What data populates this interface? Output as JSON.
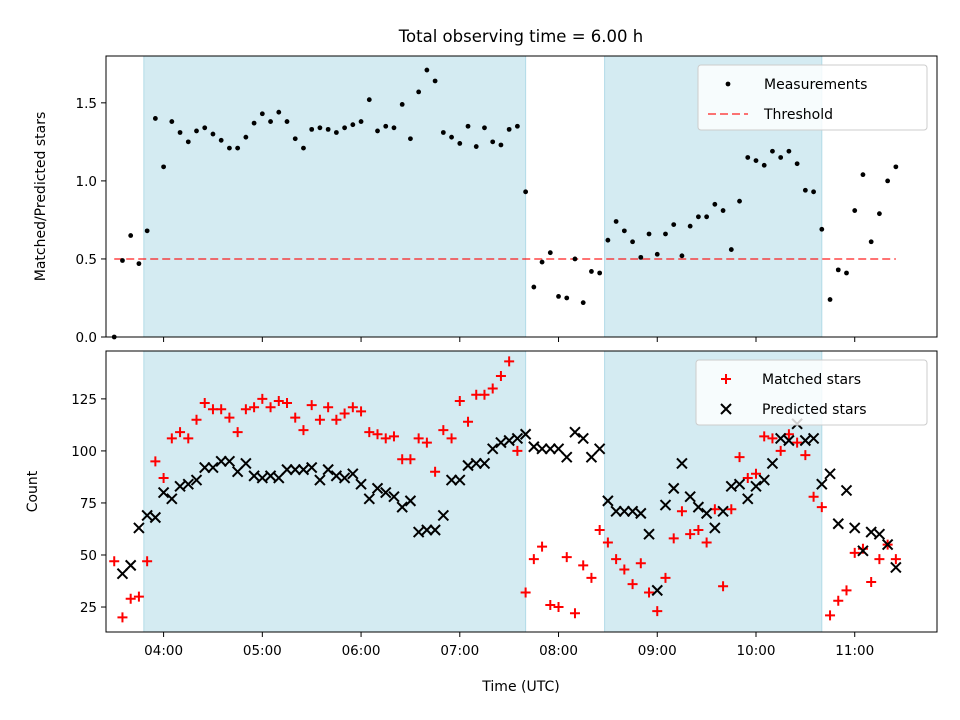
{
  "title": "Total observing time = 6.00 h",
  "colors": {
    "shade": "#add8e6",
    "measurement": "#000000",
    "threshold": "#ff0000",
    "matched": "#ff0000",
    "predicted": "#000000",
    "background": "#ffffff"
  },
  "chart_data": [
    {
      "type": "scatter",
      "ylabel": "Matched/Predicted stars",
      "ylim": [
        0,
        1.8
      ],
      "yticks": [
        0,
        0.5,
        1.0,
        1.5
      ],
      "yticklabels": [
        "0.0",
        "0.5",
        "1.0",
        "1.5"
      ],
      "xlim": [
        "03:25",
        "11:50"
      ],
      "legend": {
        "placement": "top-right",
        "entries": [
          "Measurements",
          "Threshold"
        ]
      },
      "shaded_intervals": [
        [
          "03:48",
          "07:40"
        ],
        [
          "08:28",
          "10:40"
        ]
      ],
      "threshold": {
        "name": "Threshold",
        "y": 0.5,
        "x_start": "03:30",
        "x_end": "11:25"
      },
      "series": [
        {
          "name": "Measurements",
          "marker": "dot",
          "x": [
            "03:30",
            "03:35",
            "03:40",
            "03:45",
            "03:50",
            "03:55",
            "04:00",
            "04:05",
            "04:10",
            "04:15",
            "04:20",
            "04:25",
            "04:30",
            "04:35",
            "04:40",
            "04:45",
            "04:50",
            "04:55",
            "05:00",
            "05:05",
            "05:10",
            "05:15",
            "05:20",
            "05:25",
            "05:30",
            "05:35",
            "05:40",
            "05:45",
            "05:50",
            "05:55",
            "06:00",
            "06:05",
            "06:10",
            "06:15",
            "06:20",
            "06:25",
            "06:30",
            "06:35",
            "06:40",
            "06:45",
            "06:50",
            "06:55",
            "07:00",
            "07:05",
            "07:10",
            "07:15",
            "07:20",
            "07:25",
            "07:30",
            "07:35",
            "07:40",
            "07:45",
            "07:50",
            "07:55",
            "08:00",
            "08:05",
            "08:10",
            "08:15",
            "08:20",
            "08:25",
            "08:30",
            "08:35",
            "08:40",
            "08:45",
            "08:50",
            "08:55",
            "09:00",
            "09:05",
            "09:10",
            "09:15",
            "09:20",
            "09:25",
            "09:30",
            "09:35",
            "09:40",
            "09:45",
            "09:50",
            "09:55",
            "10:00",
            "10:05",
            "10:10",
            "10:15",
            "10:20",
            "10:25",
            "10:30",
            "10:35",
            "10:40",
            "10:45",
            "10:50",
            "10:55",
            "11:00",
            "11:05",
            "11:10",
            "11:15",
            "11:20",
            "11:25"
          ],
          "y": [
            0.0,
            0.49,
            0.65,
            0.47,
            0.68,
            1.4,
            1.09,
            1.38,
            1.31,
            1.25,
            1.32,
            1.34,
            1.3,
            1.26,
            1.21,
            1.21,
            1.28,
            1.37,
            1.43,
            1.38,
            1.44,
            1.38,
            1.27,
            1.21,
            1.33,
            1.34,
            1.33,
            1.31,
            1.34,
            1.36,
            1.38,
            1.52,
            1.32,
            1.35,
            1.34,
            1.49,
            1.27,
            1.57,
            1.71,
            1.64,
            1.31,
            1.28,
            1.24,
            1.35,
            1.22,
            1.34,
            1.25,
            1.23,
            1.33,
            1.35,
            0.93,
            0.32,
            0.48,
            0.54,
            0.26,
            0.25,
            0.5,
            0.22,
            0.42,
            0.41,
            0.62,
            0.74,
            0.68,
            0.61,
            0.51,
            0.66,
            0.53,
            0.66,
            0.72,
            0.52,
            0.71,
            0.77,
            0.77,
            0.85,
            0.81,
            0.56,
            0.87,
            1.15,
            1.13,
            1.1,
            1.19,
            1.15,
            1.19,
            1.11,
            0.94,
            0.93,
            0.69,
            0.24,
            0.43,
            0.41,
            0.81,
            1.04,
            0.61,
            0.79,
            1.0,
            1.09
          ]
        }
      ]
    },
    {
      "type": "scatter",
      "xlabel": "Time (UTC)",
      "ylabel": "Count",
      "ylim": [
        13,
        148
      ],
      "yticks": [
        25,
        50,
        75,
        100,
        125
      ],
      "yticklabels": [
        "25",
        "50",
        "75",
        "100",
        "125"
      ],
      "xlim": [
        "03:25",
        "11:50"
      ],
      "xticks": [
        "04:00",
        "05:00",
        "06:00",
        "07:00",
        "08:00",
        "09:00",
        "10:00",
        "11:00"
      ],
      "legend": {
        "placement": "top-right",
        "entries": [
          "Matched stars",
          "Predicted stars"
        ]
      },
      "shaded_intervals": [
        [
          "03:48",
          "07:40"
        ],
        [
          "08:28",
          "10:40"
        ]
      ],
      "series": [
        {
          "name": "Matched stars",
          "marker": "plus",
          "x": [
            "03:30",
            "03:35",
            "03:40",
            "03:45",
            "03:50",
            "03:55",
            "04:00",
            "04:05",
            "04:10",
            "04:15",
            "04:20",
            "04:25",
            "04:30",
            "04:35",
            "04:40",
            "04:45",
            "04:50",
            "04:55",
            "05:00",
            "05:05",
            "05:10",
            "05:15",
            "05:20",
            "05:25",
            "05:30",
            "05:35",
            "05:40",
            "05:45",
            "05:50",
            "05:55",
            "06:00",
            "06:05",
            "06:10",
            "06:15",
            "06:20",
            "06:25",
            "06:30",
            "06:35",
            "06:40",
            "06:45",
            "06:50",
            "06:55",
            "07:00",
            "07:05",
            "07:10",
            "07:15",
            "07:20",
            "07:25",
            "07:30",
            "07:35",
            "07:40",
            "07:45",
            "07:50",
            "07:55",
            "08:00",
            "08:05",
            "08:10",
            "08:15",
            "08:20",
            "08:25",
            "08:30",
            "08:35",
            "08:40",
            "08:45",
            "08:50",
            "08:55",
            "09:00",
            "09:05",
            "09:10",
            "09:15",
            "09:20",
            "09:25",
            "09:30",
            "09:35",
            "09:40",
            "09:45",
            "09:50",
            "09:55",
            "10:00",
            "10:05",
            "10:10",
            "10:15",
            "10:20",
            "10:25",
            "10:30",
            "10:35",
            "10:40",
            "10:45",
            "10:50",
            "10:55",
            "11:00",
            "11:05",
            "11:10",
            "11:15",
            "11:20",
            "11:25"
          ],
          "y": [
            47,
            20,
            29,
            30,
            47,
            95,
            87,
            106,
            109,
            106,
            115,
            123,
            120,
            120,
            116,
            109,
            120,
            121,
            125,
            121,
            124,
            123,
            116,
            110,
            122,
            115,
            121,
            115,
            118,
            121,
            119,
            109,
            108,
            106,
            107,
            96,
            96,
            106,
            104,
            90,
            110,
            106,
            124,
            114,
            127,
            127,
            130,
            136,
            143,
            100,
            32,
            48,
            54,
            26,
            25,
            49,
            22,
            45,
            39,
            62,
            56,
            48,
            43,
            36,
            46,
            32,
            23,
            39,
            58,
            71,
            60,
            62,
            56,
            72,
            35,
            72,
            97,
            87,
            89,
            107,
            106,
            100,
            108,
            104,
            98,
            78,
            73,
            21,
            28,
            33,
            51,
            53,
            37,
            48,
            55,
            48
          ]
        },
        {
          "name": "Predicted stars",
          "marker": "x",
          "x": [
            "03:35",
            "03:40",
            "03:45",
            "03:50",
            "03:55",
            "04:00",
            "04:05",
            "04:10",
            "04:15",
            "04:20",
            "04:25",
            "04:30",
            "04:35",
            "04:40",
            "04:45",
            "04:50",
            "04:55",
            "05:00",
            "05:05",
            "05:10",
            "05:15",
            "05:20",
            "05:25",
            "05:30",
            "05:35",
            "05:40",
            "05:45",
            "05:50",
            "05:55",
            "06:00",
            "06:05",
            "06:10",
            "06:15",
            "06:20",
            "06:25",
            "06:30",
            "06:35",
            "06:40",
            "06:45",
            "06:50",
            "06:55",
            "07:00",
            "07:05",
            "07:10",
            "07:15",
            "07:20",
            "07:25",
            "07:30",
            "07:35",
            "07:40",
            "07:45",
            "07:50",
            "07:55",
            "08:00",
            "08:05",
            "08:10",
            "08:15",
            "08:20",
            "08:25",
            "08:30",
            "08:35",
            "08:40",
            "08:45",
            "08:50",
            "08:55",
            "09:00",
            "09:05",
            "09:10",
            "09:15",
            "09:20",
            "09:25",
            "09:30",
            "09:35",
            "09:40",
            "09:45",
            "09:50",
            "09:55",
            "10:00",
            "10:05",
            "10:10",
            "10:15",
            "10:20",
            "10:25",
            "10:30",
            "10:35",
            "10:40",
            "10:45",
            "10:50",
            "10:55",
            "11:00",
            "11:05",
            "11:10",
            "11:15",
            "11:20",
            "11:25"
          ],
          "y": [
            41,
            45,
            63,
            69,
            68,
            80,
            77,
            83,
            84,
            86,
            92,
            92,
            95,
            95,
            90,
            94,
            88,
            87,
            88,
            87,
            91,
            91,
            91,
            92,
            86,
            91,
            88,
            87,
            89,
            84,
            77,
            82,
            80,
            78,
            73,
            76,
            61,
            62,
            62,
            69,
            86,
            86,
            93,
            94,
            94,
            101,
            104,
            105,
            106,
            108,
            102,
            101,
            101,
            101,
            97,
            109,
            106,
            97,
            101,
            76,
            71,
            71,
            71,
            70,
            60,
            33,
            74,
            82,
            94,
            78,
            73,
            70,
            63,
            71,
            83,
            84,
            77,
            83,
            86,
            94,
            106,
            105,
            113,
            105,
            106,
            84,
            89,
            65,
            81,
            63,
            52,
            61,
            60,
            55,
            44
          ]
        }
      ]
    }
  ]
}
